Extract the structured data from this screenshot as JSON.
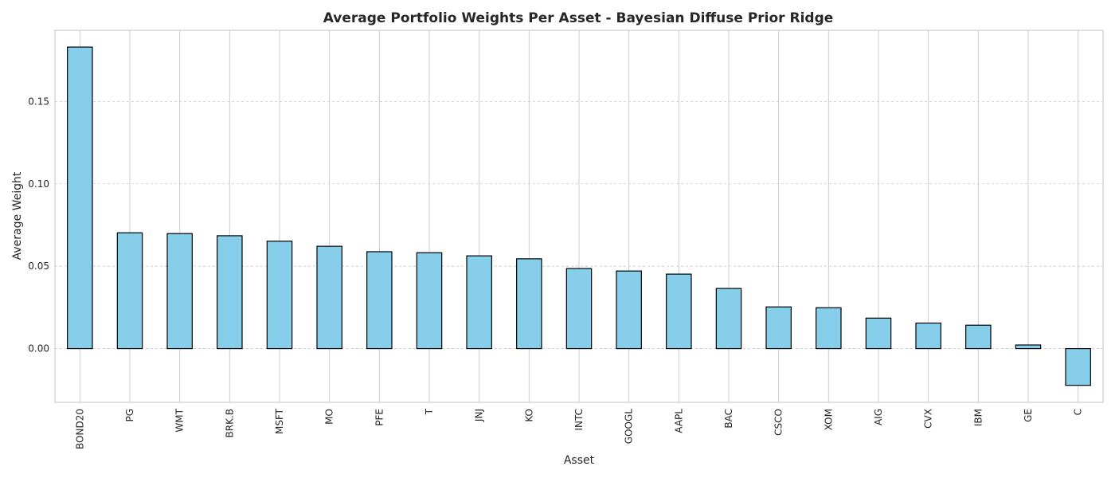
{
  "chart_data": {
    "type": "bar",
    "title": "Average Portfolio Weights Per Asset - Bayesian Diffuse Prior Ridge",
    "xlabel": "Asset",
    "ylabel": "Average Weight",
    "categories": [
      "BOND20",
      "PG",
      "WMT",
      "BRK.B",
      "MSFT",
      "MO",
      "PFE",
      "T",
      "JNJ",
      "KO",
      "INTC",
      "GOOGL",
      "AAPL",
      "BAC",
      "CSCO",
      "XOM",
      "AIG",
      "CVX",
      "IBM",
      "GE",
      "C"
    ],
    "values": [
      0.183,
      0.0703,
      0.0698,
      0.0685,
      0.0652,
      0.0621,
      0.0588,
      0.0582,
      0.0563,
      0.0545,
      0.0486,
      0.0471,
      0.0452,
      0.0365,
      0.0253,
      0.0248,
      0.0185,
      0.0155,
      0.0142,
      0.0022,
      -0.0223
    ],
    "yticks": [
      0.0,
      0.05,
      0.1,
      0.15
    ],
    "ytick_labels": [
      "0.00",
      "0.05",
      "0.10",
      "0.15"
    ],
    "ylim": [
      -0.0326,
      0.1932
    ],
    "grid": true,
    "bar_color": "#87ceeb",
    "edge_color": "#000000"
  }
}
